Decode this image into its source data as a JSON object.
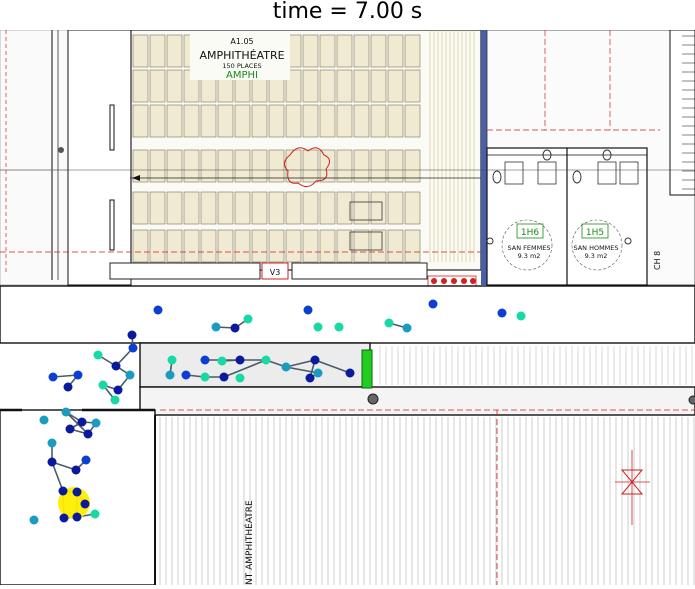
{
  "title": "time = 7.00 s",
  "plan_labels": {
    "room_code": "A1.05",
    "room_name": "AMPHITHÉATRE",
    "room_capacity": "150 PLACES",
    "room_tag": "AMPHI",
    "wc_women_code": "1H6",
    "wc_women_name": "SAN FEMMES",
    "wc_women_area": "9.3 m2",
    "wc_men_code": "1H5",
    "wc_men_name": "SAN HOMMES",
    "wc_men_area": "9.3 m2",
    "bottom_label": "NT AMPHITHÉATRE",
    "vertical_label": "CH 8",
    "door_tag": "V3"
  },
  "colors": {
    "agent_blue": "#0b3fd1",
    "agent_navy": "#0a1a9c",
    "agent_teal": "#1a9bc0",
    "agent_cyan": "#17d9a6",
    "link_gray": "#4a5a6a",
    "highlight": "#ffee00",
    "exit_green": "#22cc22",
    "plan_line": "#444444",
    "wall": "#111111",
    "seat_fill": "#f0ead2",
    "dashed_red": "#d02020"
  }
}
